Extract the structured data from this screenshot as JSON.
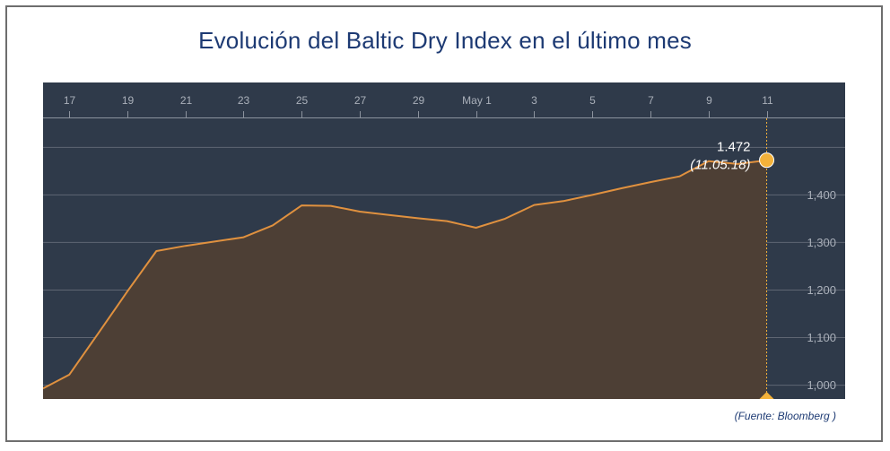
{
  "title": "Evolución del Baltic Dry Index en el último mes",
  "source": "(Fuente: Bloomberg )",
  "colors": {
    "background": "#2f3a4a",
    "line": "#e0913f",
    "fill": "#4d3f35",
    "marker": "#f4b23a",
    "grid": "#5f6673",
    "title": "#1d3a73"
  },
  "chart_data": {
    "type": "area",
    "title": "Evolución del Baltic Dry Index en el último mes",
    "xlabel": "",
    "ylabel": "",
    "x_ticks": [
      "17",
      "19",
      "21",
      "23",
      "25",
      "27",
      "29",
      "May 1",
      "3",
      "5",
      "7",
      "9",
      "11"
    ],
    "x_tick_days": [
      17,
      19,
      21,
      23,
      25,
      27,
      29,
      31,
      33,
      35,
      37,
      39,
      41
    ],
    "y_ticks": [
      1000,
      1100,
      1200,
      1300,
      1400
    ],
    "y_tick_labels": [
      "1,000",
      "1,100",
      "1,200",
      "1,300",
      "1,400"
    ],
    "ylim": [
      970,
      1560
    ],
    "xlim": [
      16.1,
      43.7
    ],
    "grid": true,
    "series": [
      {
        "x": [
          16.1,
          17,
          18,
          19,
          20,
          21,
          22,
          23,
          24,
          25,
          26,
          27,
          28,
          29,
          30,
          31,
          32,
          33,
          34,
          35,
          36,
          37,
          38,
          39,
          40,
          41
        ],
        "y": [
          992,
          1021,
          1108,
          1196,
          1281,
          1292,
          1301,
          1310,
          1335,
          1377,
          1376,
          1364,
          1357,
          1350,
          1344,
          1330,
          1349,
          1378,
          1386,
          1399,
          1413,
          1426,
          1438,
          1470,
          1464,
          1472
        ]
      }
    ],
    "annotation": {
      "value_label": "1.472",
      "date_label": "(11.05.18)",
      "x": 41,
      "y": 1472
    }
  }
}
